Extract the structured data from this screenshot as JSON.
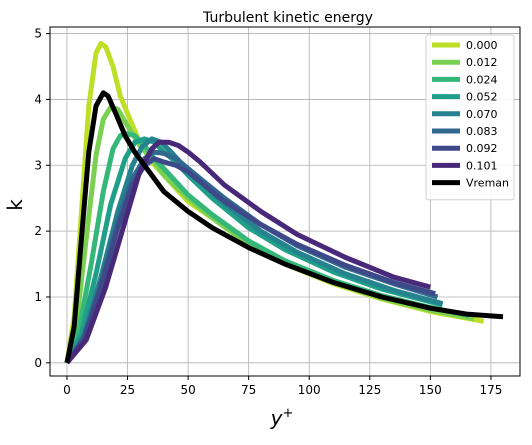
{
  "chart_data": {
    "type": "line",
    "title": "Turbulent kinetic energy",
    "xlabel": "y",
    "xlabel_sup": "+",
    "ylabel": "k",
    "xlim": [
      -7,
      187
    ],
    "ylim": [
      -0.2,
      5.1
    ],
    "xticks": [
      0,
      25,
      50,
      75,
      100,
      125,
      150,
      175
    ],
    "yticks": [
      0,
      1,
      2,
      3,
      4,
      5
    ],
    "grid": true,
    "legend_position": "top-right",
    "series": [
      {
        "name": "0.000",
        "color": "#bddf26",
        "x": [
          0,
          3,
          6,
          9,
          12,
          14,
          16,
          19,
          22,
          26,
          30,
          35,
          40,
          50,
          60,
          75,
          90,
          110,
          130,
          150,
          172
        ],
        "y": [
          0,
          0.7,
          2.3,
          3.9,
          4.7,
          4.85,
          4.8,
          4.5,
          4.05,
          3.7,
          3.35,
          3.05,
          2.85,
          2.45,
          2.2,
          1.8,
          1.5,
          1.2,
          0.97,
          0.78,
          0.63
        ]
      },
      {
        "name": "0.012",
        "color": "#7ad151",
        "x": [
          0,
          4,
          8,
          12,
          15,
          18,
          21,
          25,
          30,
          35,
          40,
          50,
          60,
          75,
          90,
          110,
          130,
          150,
          168
        ],
        "y": [
          0,
          0.6,
          1.9,
          3.15,
          3.7,
          3.88,
          3.85,
          3.6,
          3.3,
          3.1,
          2.85,
          2.5,
          2.2,
          1.8,
          1.5,
          1.22,
          0.98,
          0.8,
          0.67
        ]
      },
      {
        "name": "0.024",
        "color": "#35b779",
        "x": [
          0,
          5,
          10,
          15,
          19,
          22,
          25,
          28,
          32,
          36,
          40,
          50,
          60,
          75,
          90,
          110,
          130,
          150,
          166
        ],
        "y": [
          0,
          0.5,
          1.5,
          2.6,
          3.25,
          3.45,
          3.48,
          3.45,
          3.3,
          3.1,
          2.95,
          2.55,
          2.25,
          1.85,
          1.55,
          1.25,
          1.02,
          0.84,
          0.72
        ]
      },
      {
        "name": "0.052",
        "color": "#1f9e89",
        "x": [
          0,
          6,
          12,
          18,
          24,
          28,
          32,
          36,
          40,
          45,
          50,
          60,
          75,
          90,
          110,
          130,
          155
        ],
        "y": [
          0,
          0.45,
          1.35,
          2.4,
          3.1,
          3.35,
          3.4,
          3.35,
          3.2,
          3.05,
          2.85,
          2.5,
          2.05,
          1.72,
          1.38,
          1.12,
          0.88
        ]
      },
      {
        "name": "0.070",
        "color": "#26828e",
        "x": [
          0,
          7,
          14,
          21,
          27,
          31,
          35,
          39,
          43,
          48,
          55,
          65,
          80,
          95,
          115,
          135,
          155
        ],
        "y": [
          0,
          0.42,
          1.3,
          2.3,
          3.0,
          3.28,
          3.4,
          3.35,
          3.2,
          3.0,
          2.75,
          2.42,
          2.0,
          1.68,
          1.35,
          1.1,
          0.9
        ]
      },
      {
        "name": "0.083",
        "color": "#31688e",
        "x": [
          0,
          7,
          14,
          21,
          27,
          32,
          36,
          40,
          45,
          50,
          55,
          65,
          80,
          95,
          115,
          135,
          153
        ],
        "y": [
          0,
          0.38,
          1.2,
          2.15,
          2.8,
          3.1,
          3.2,
          3.18,
          3.1,
          2.95,
          2.8,
          2.5,
          2.1,
          1.78,
          1.45,
          1.2,
          1.0
        ]
      },
      {
        "name": "0.092",
        "color": "#3e4989",
        "x": [
          0,
          7,
          14,
          21,
          27,
          32,
          36,
          40,
          45,
          50,
          55,
          65,
          80,
          95,
          115,
          135,
          152
        ],
        "y": [
          0,
          0.36,
          1.15,
          2.05,
          2.7,
          3.0,
          3.1,
          3.05,
          3.0,
          2.9,
          2.75,
          2.45,
          2.1,
          1.8,
          1.48,
          1.22,
          1.05
        ]
      },
      {
        "name": "0.101",
        "color": "#482878",
        "x": [
          0,
          8,
          16,
          24,
          30,
          35,
          38,
          42,
          46,
          50,
          55,
          65,
          80,
          95,
          115,
          135,
          150
        ],
        "y": [
          0,
          0.35,
          1.15,
          2.15,
          2.9,
          3.25,
          3.35,
          3.35,
          3.3,
          3.2,
          3.05,
          2.7,
          2.3,
          1.95,
          1.6,
          1.3,
          1.15
        ]
      },
      {
        "name": "Vreman",
        "color": "#000000",
        "x": [
          0,
          3,
          6,
          9,
          12,
          15,
          17,
          20,
          24,
          28,
          32,
          36,
          40,
          50,
          60,
          75,
          90,
          110,
          130,
          150,
          165,
          180
        ],
        "y": [
          0,
          0.55,
          1.9,
          3.2,
          3.9,
          4.1,
          4.05,
          3.8,
          3.45,
          3.2,
          3.0,
          2.8,
          2.6,
          2.3,
          2.05,
          1.75,
          1.5,
          1.22,
          1.0,
          0.83,
          0.74,
          0.7
        ]
      }
    ]
  }
}
